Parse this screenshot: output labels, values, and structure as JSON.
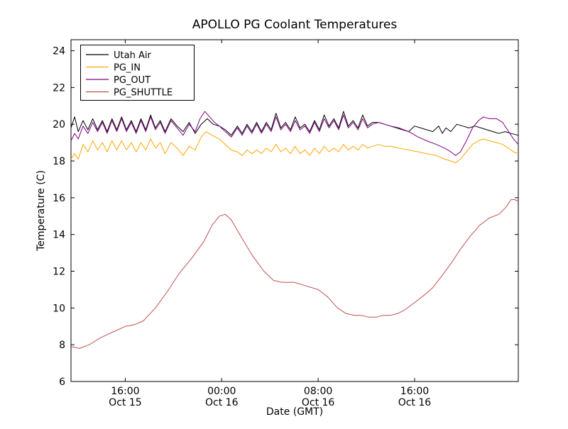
{
  "chart_data": {
    "type": "line",
    "title": "APOLLO PG Coolant Temperatures",
    "xlabel": "Date (GMT)",
    "ylabel": "Temperature (C)",
    "grid": false,
    "legend_position": "upper left",
    "x_unit": "hours since Oct 15 00:00 GMT",
    "xlim": [
      11.5,
      48.6
    ],
    "ylim": [
      6,
      24.6
    ],
    "yticks": [
      6,
      8,
      10,
      12,
      14,
      16,
      18,
      20,
      22,
      24
    ],
    "xticks": [
      {
        "x": 16,
        "time": "16:00",
        "date": "Oct 15"
      },
      {
        "x": 24,
        "time": "00:00",
        "date": "Oct 16"
      },
      {
        "x": 32,
        "time": "08:00",
        "date": "Oct 16"
      },
      {
        "x": 40,
        "time": "16:00",
        "date": "Oct 16"
      }
    ],
    "series": [
      {
        "name": "Utah Air",
        "color": "#000000",
        "points": [
          [
            11.5,
            19.8
          ],
          [
            11.8,
            20.4
          ],
          [
            12.1,
            19.6
          ],
          [
            12.5,
            20.2
          ],
          [
            12.9,
            19.7
          ],
          [
            13.3,
            20.3
          ],
          [
            13.7,
            19.7
          ],
          [
            14.1,
            20.2
          ],
          [
            14.5,
            19.6
          ],
          [
            14.9,
            20.3
          ],
          [
            15.3,
            19.7
          ],
          [
            15.7,
            20.4
          ],
          [
            16.1,
            19.7
          ],
          [
            16.5,
            20.2
          ],
          [
            16.9,
            19.6
          ],
          [
            17.3,
            20.3
          ],
          [
            17.7,
            19.7
          ],
          [
            18.1,
            20.5
          ],
          [
            18.5,
            19.8
          ],
          [
            18.9,
            20.2
          ],
          [
            19.3,
            19.6
          ],
          [
            19.8,
            20.3
          ],
          [
            20.3,
            19.9
          ],
          [
            20.8,
            19.6
          ],
          [
            21.3,
            20.1
          ],
          [
            21.8,
            19.5
          ],
          [
            22.3,
            20.0
          ],
          [
            22.8,
            20.3
          ],
          [
            23.3,
            20.0
          ],
          [
            23.8,
            19.9
          ],
          [
            24.3,
            19.7
          ],
          [
            24.8,
            19.4
          ],
          [
            25.3,
            19.9
          ],
          [
            25.7,
            19.5
          ],
          [
            26.1,
            20.0
          ],
          [
            26.5,
            19.6
          ],
          [
            26.9,
            20.1
          ],
          [
            27.3,
            19.6
          ],
          [
            27.7,
            20.1
          ],
          [
            28.1,
            19.7
          ],
          [
            28.5,
            20.6
          ],
          [
            28.9,
            19.8
          ],
          [
            29.3,
            20.1
          ],
          [
            29.7,
            19.7
          ],
          [
            30.1,
            20.4
          ],
          [
            30.5,
            19.8
          ],
          [
            30.9,
            20.0
          ],
          [
            31.3,
            19.6
          ],
          [
            31.7,
            20.2
          ],
          [
            32.1,
            19.7
          ],
          [
            32.5,
            20.5
          ],
          [
            32.9,
            19.9
          ],
          [
            33.3,
            20.3
          ],
          [
            33.7,
            19.8
          ],
          [
            34.1,
            20.7
          ],
          [
            34.5,
            19.9
          ],
          [
            34.9,
            20.2
          ],
          [
            35.3,
            19.8
          ],
          [
            35.7,
            20.5
          ],
          [
            36.1,
            19.9
          ],
          [
            36.5,
            20.1
          ],
          [
            37.0,
            20.1
          ],
          [
            37.5,
            20.0
          ],
          [
            38.0,
            19.9
          ],
          [
            38.5,
            19.8
          ],
          [
            39.0,
            19.7
          ],
          [
            39.5,
            19.6
          ],
          [
            40.0,
            19.9
          ],
          [
            40.5,
            19.8
          ],
          [
            41.0,
            19.7
          ],
          [
            41.5,
            19.6
          ],
          [
            42.0,
            19.9
          ],
          [
            42.3,
            19.5
          ],
          [
            42.6,
            19.8
          ],
          [
            43.0,
            19.6
          ],
          [
            43.5,
            20.0
          ],
          [
            44.0,
            19.9
          ],
          [
            44.5,
            19.8
          ],
          [
            45.0,
            19.9
          ],
          [
            45.5,
            19.8
          ],
          [
            46.0,
            19.7
          ],
          [
            46.5,
            19.6
          ],
          [
            47.0,
            19.5
          ],
          [
            47.5,
            19.6
          ],
          [
            48.0,
            19.5
          ],
          [
            48.6,
            19.4
          ]
        ]
      },
      {
        "name": "PG_IN",
        "color": "#ffa500",
        "points": [
          [
            11.5,
            18.1
          ],
          [
            11.8,
            18.4
          ],
          [
            12.1,
            18.1
          ],
          [
            12.5,
            18.9
          ],
          [
            12.9,
            18.5
          ],
          [
            13.3,
            19.1
          ],
          [
            13.7,
            18.6
          ],
          [
            14.1,
            19.0
          ],
          [
            14.5,
            18.5
          ],
          [
            14.9,
            19.1
          ],
          [
            15.3,
            18.6
          ],
          [
            15.7,
            19.1
          ],
          [
            16.1,
            18.6
          ],
          [
            16.5,
            19.0
          ],
          [
            16.9,
            18.5
          ],
          [
            17.3,
            19.0
          ],
          [
            17.7,
            18.6
          ],
          [
            18.1,
            19.2
          ],
          [
            18.5,
            18.7
          ],
          [
            18.9,
            19.0
          ],
          [
            19.3,
            18.4
          ],
          [
            19.8,
            19.0
          ],
          [
            20.3,
            18.7
          ],
          [
            20.8,
            18.3
          ],
          [
            21.3,
            18.8
          ],
          [
            21.8,
            18.6
          ],
          [
            22.3,
            19.3
          ],
          [
            22.7,
            19.6
          ],
          [
            23.2,
            19.4
          ],
          [
            23.8,
            19.2
          ],
          [
            24.3,
            18.9
          ],
          [
            24.8,
            18.6
          ],
          [
            25.3,
            18.5
          ],
          [
            25.7,
            18.3
          ],
          [
            26.1,
            18.6
          ],
          [
            26.5,
            18.4
          ],
          [
            26.9,
            18.6
          ],
          [
            27.3,
            18.4
          ],
          [
            27.7,
            18.7
          ],
          [
            28.1,
            18.5
          ],
          [
            28.5,
            18.9
          ],
          [
            28.9,
            18.5
          ],
          [
            29.3,
            18.7
          ],
          [
            29.7,
            18.4
          ],
          [
            30.1,
            18.8
          ],
          [
            30.5,
            18.4
          ],
          [
            30.9,
            18.6
          ],
          [
            31.3,
            18.3
          ],
          [
            31.7,
            18.7
          ],
          [
            32.1,
            18.4
          ],
          [
            32.5,
            18.8
          ],
          [
            32.9,
            18.5
          ],
          [
            33.3,
            18.7
          ],
          [
            33.7,
            18.5
          ],
          [
            34.1,
            18.9
          ],
          [
            34.5,
            18.6
          ],
          [
            34.9,
            18.8
          ],
          [
            35.3,
            18.6
          ],
          [
            35.7,
            18.9
          ],
          [
            36.1,
            18.7
          ],
          [
            36.5,
            18.8
          ],
          [
            37.0,
            18.9
          ],
          [
            37.5,
            18.8
          ],
          [
            38.0,
            18.8
          ],
          [
            38.7,
            18.7
          ],
          [
            39.5,
            18.6
          ],
          [
            40.3,
            18.5
          ],
          [
            41.0,
            18.4
          ],
          [
            41.8,
            18.3
          ],
          [
            42.5,
            18.1
          ],
          [
            43.0,
            18.0
          ],
          [
            43.4,
            17.9
          ],
          [
            43.8,
            18.1
          ],
          [
            44.3,
            18.5
          ],
          [
            44.8,
            18.9
          ],
          [
            45.3,
            19.1
          ],
          [
            45.7,
            19.2
          ],
          [
            46.2,
            19.1
          ],
          [
            46.8,
            19.0
          ],
          [
            47.3,
            18.9
          ],
          [
            47.8,
            18.7
          ],
          [
            48.2,
            18.5
          ],
          [
            48.6,
            18.4
          ]
        ]
      },
      {
        "name": "PG_OUT",
        "color": "#800080",
        "points": [
          [
            11.5,
            19.1
          ],
          [
            11.8,
            19.5
          ],
          [
            12.1,
            19.2
          ],
          [
            12.5,
            19.9
          ],
          [
            12.9,
            19.5
          ],
          [
            13.3,
            20.1
          ],
          [
            13.7,
            19.6
          ],
          [
            14.1,
            20.1
          ],
          [
            14.5,
            19.5
          ],
          [
            14.9,
            20.2
          ],
          [
            15.3,
            19.6
          ],
          [
            15.7,
            20.3
          ],
          [
            16.1,
            19.6
          ],
          [
            16.5,
            20.1
          ],
          [
            16.9,
            19.5
          ],
          [
            17.3,
            20.2
          ],
          [
            17.7,
            19.6
          ],
          [
            18.1,
            20.4
          ],
          [
            18.5,
            19.7
          ],
          [
            18.9,
            20.1
          ],
          [
            19.3,
            19.5
          ],
          [
            19.8,
            20.2
          ],
          [
            20.3,
            19.8
          ],
          [
            20.8,
            19.4
          ],
          [
            21.3,
            20.0
          ],
          [
            21.8,
            19.6
          ],
          [
            22.2,
            20.3
          ],
          [
            22.6,
            20.7
          ],
          [
            23.0,
            20.4
          ],
          [
            23.4,
            20.1
          ],
          [
            23.8,
            19.9
          ],
          [
            24.3,
            19.6
          ],
          [
            24.8,
            19.3
          ],
          [
            25.3,
            19.8
          ],
          [
            25.7,
            19.4
          ],
          [
            26.1,
            19.9
          ],
          [
            26.5,
            19.5
          ],
          [
            26.9,
            20.0
          ],
          [
            27.3,
            19.5
          ],
          [
            27.7,
            20.0
          ],
          [
            28.1,
            19.6
          ],
          [
            28.5,
            20.4
          ],
          [
            28.9,
            19.7
          ],
          [
            29.3,
            20.0
          ],
          [
            29.7,
            19.6
          ],
          [
            30.1,
            20.2
          ],
          [
            30.5,
            19.7
          ],
          [
            30.9,
            19.9
          ],
          [
            31.3,
            19.5
          ],
          [
            31.7,
            20.1
          ],
          [
            32.1,
            19.6
          ],
          [
            32.5,
            20.3
          ],
          [
            32.9,
            19.8
          ],
          [
            33.3,
            20.2
          ],
          [
            33.7,
            19.7
          ],
          [
            34.1,
            20.5
          ],
          [
            34.5,
            19.8
          ],
          [
            34.9,
            20.1
          ],
          [
            35.3,
            19.7
          ],
          [
            35.7,
            20.3
          ],
          [
            36.1,
            19.8
          ],
          [
            36.5,
            20.0
          ],
          [
            37.0,
            20.1
          ],
          [
            37.5,
            20.0
          ],
          [
            38.0,
            19.9
          ],
          [
            38.7,
            19.8
          ],
          [
            39.5,
            19.6
          ],
          [
            40.3,
            19.3
          ],
          [
            41.0,
            19.1
          ],
          [
            41.8,
            18.9
          ],
          [
            42.5,
            18.7
          ],
          [
            43.0,
            18.5
          ],
          [
            43.4,
            18.3
          ],
          [
            43.8,
            18.5
          ],
          [
            44.3,
            19.1
          ],
          [
            44.8,
            19.8
          ],
          [
            45.3,
            20.2
          ],
          [
            45.7,
            20.4
          ],
          [
            46.2,
            20.3
          ],
          [
            46.8,
            20.3
          ],
          [
            47.3,
            20.1
          ],
          [
            47.8,
            19.6
          ],
          [
            48.2,
            19.2
          ],
          [
            48.6,
            18.9
          ]
        ]
      },
      {
        "name": "PG_SHUTTLE",
        "color": "#c0504d",
        "points": [
          [
            11.5,
            7.9
          ],
          [
            12.2,
            7.8
          ],
          [
            13.0,
            8.0
          ],
          [
            14.0,
            8.4
          ],
          [
            15.0,
            8.7
          ],
          [
            16.0,
            9.0
          ],
          [
            16.8,
            9.1
          ],
          [
            17.5,
            9.3
          ],
          [
            18.5,
            10.0
          ],
          [
            19.5,
            10.9
          ],
          [
            20.5,
            11.9
          ],
          [
            21.5,
            12.7
          ],
          [
            22.5,
            13.6
          ],
          [
            23.2,
            14.5
          ],
          [
            23.8,
            15.0
          ],
          [
            24.3,
            15.1
          ],
          [
            24.8,
            14.8
          ],
          [
            25.5,
            14.0
          ],
          [
            26.5,
            12.9
          ],
          [
            27.5,
            12.0
          ],
          [
            28.3,
            11.5
          ],
          [
            29.0,
            11.4
          ],
          [
            30.0,
            11.4
          ],
          [
            31.0,
            11.2
          ],
          [
            32.0,
            11.0
          ],
          [
            32.8,
            10.6
          ],
          [
            33.6,
            10.0
          ],
          [
            34.3,
            9.7
          ],
          [
            35.0,
            9.6
          ],
          [
            35.6,
            9.6
          ],
          [
            36.2,
            9.5
          ],
          [
            36.8,
            9.5
          ],
          [
            37.4,
            9.6
          ],
          [
            38.0,
            9.6
          ],
          [
            38.6,
            9.7
          ],
          [
            39.2,
            9.9
          ],
          [
            40.0,
            10.3
          ],
          [
            40.8,
            10.7
          ],
          [
            41.5,
            11.1
          ],
          [
            42.2,
            11.7
          ],
          [
            43.0,
            12.4
          ],
          [
            43.8,
            13.2
          ],
          [
            44.6,
            13.9
          ],
          [
            45.4,
            14.5
          ],
          [
            46.2,
            14.9
          ],
          [
            47.0,
            15.1
          ],
          [
            47.6,
            15.5
          ],
          [
            48.0,
            15.9
          ],
          [
            48.3,
            15.9
          ],
          [
            48.6,
            15.8
          ]
        ]
      }
    ]
  }
}
